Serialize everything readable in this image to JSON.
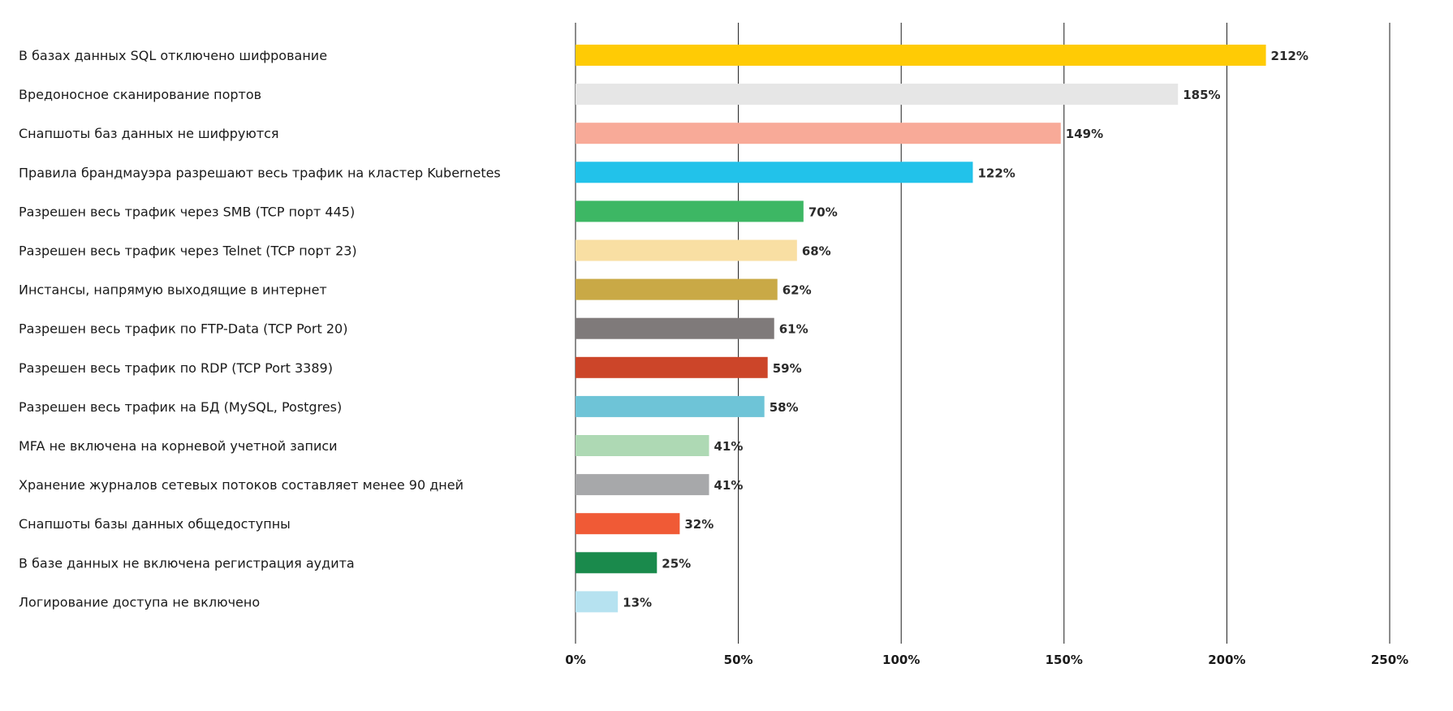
{
  "chart_data": {
    "type": "bar",
    "orientation": "horizontal",
    "title": "",
    "xlabel": "",
    "ylabel": "",
    "xlim": [
      0,
      250
    ],
    "grid": true,
    "categories": [
      "В базах данных SQL отключено шифрование",
      "Вредоносное сканирование портов",
      "Снапшоты баз данных не шифруются",
      "Правила брандмауэра разрешают весь трафик на кластер Kubernetes",
      "Разрешен весь трафик через SMB (TCP порт 445)",
      "Разрешен весь трафик через Telnet (TCP порт 23)",
      "Инстансы, напрямую выходящие в интернет",
      "Разрешен весь трафик по FTP-Data (TCP Port 20)",
      "Разрешен весь трафик по RDP (TCP Port 3389)",
      "Разрешен весь трафик на БД (MySQL, Postgres)",
      "MFA не включена на корневой учетной записи",
      "Хранение журналов сетевых потоков составляет менее 90 дней",
      "Снапшоты базы данных общедоступны",
      "В базе данных не включена регистрация аудита",
      "Логирование доступа не включено"
    ],
    "values": [
      212,
      185,
      149,
      122,
      70,
      68,
      62,
      61,
      59,
      58,
      41,
      41,
      32,
      25,
      13
    ],
    "value_labels": [
      "212%",
      "185%",
      "149%",
      "122%",
      "70%",
      "68%",
      "62%",
      "61%",
      "59%",
      "58%",
      "41%",
      "41%",
      "32%",
      "25%",
      "13%"
    ],
    "colors": [
      "#FFCB05",
      "#E6E6E6",
      "#F8AA98",
      "#22C2EA",
      "#3DB764",
      "#F9DFA3",
      "#C9A946",
      "#7F7A7A",
      "#CC4529",
      "#6EC4D7",
      "#AED9B4",
      "#A7A8AA",
      "#F05A36",
      "#1A8A4C",
      "#B6E2F0"
    ],
    "x_ticks": [
      0,
      50,
      100,
      150,
      200,
      250
    ],
    "x_tick_labels": [
      "0%",
      "50%",
      "100%",
      "150%",
      "200%",
      "250%"
    ]
  }
}
